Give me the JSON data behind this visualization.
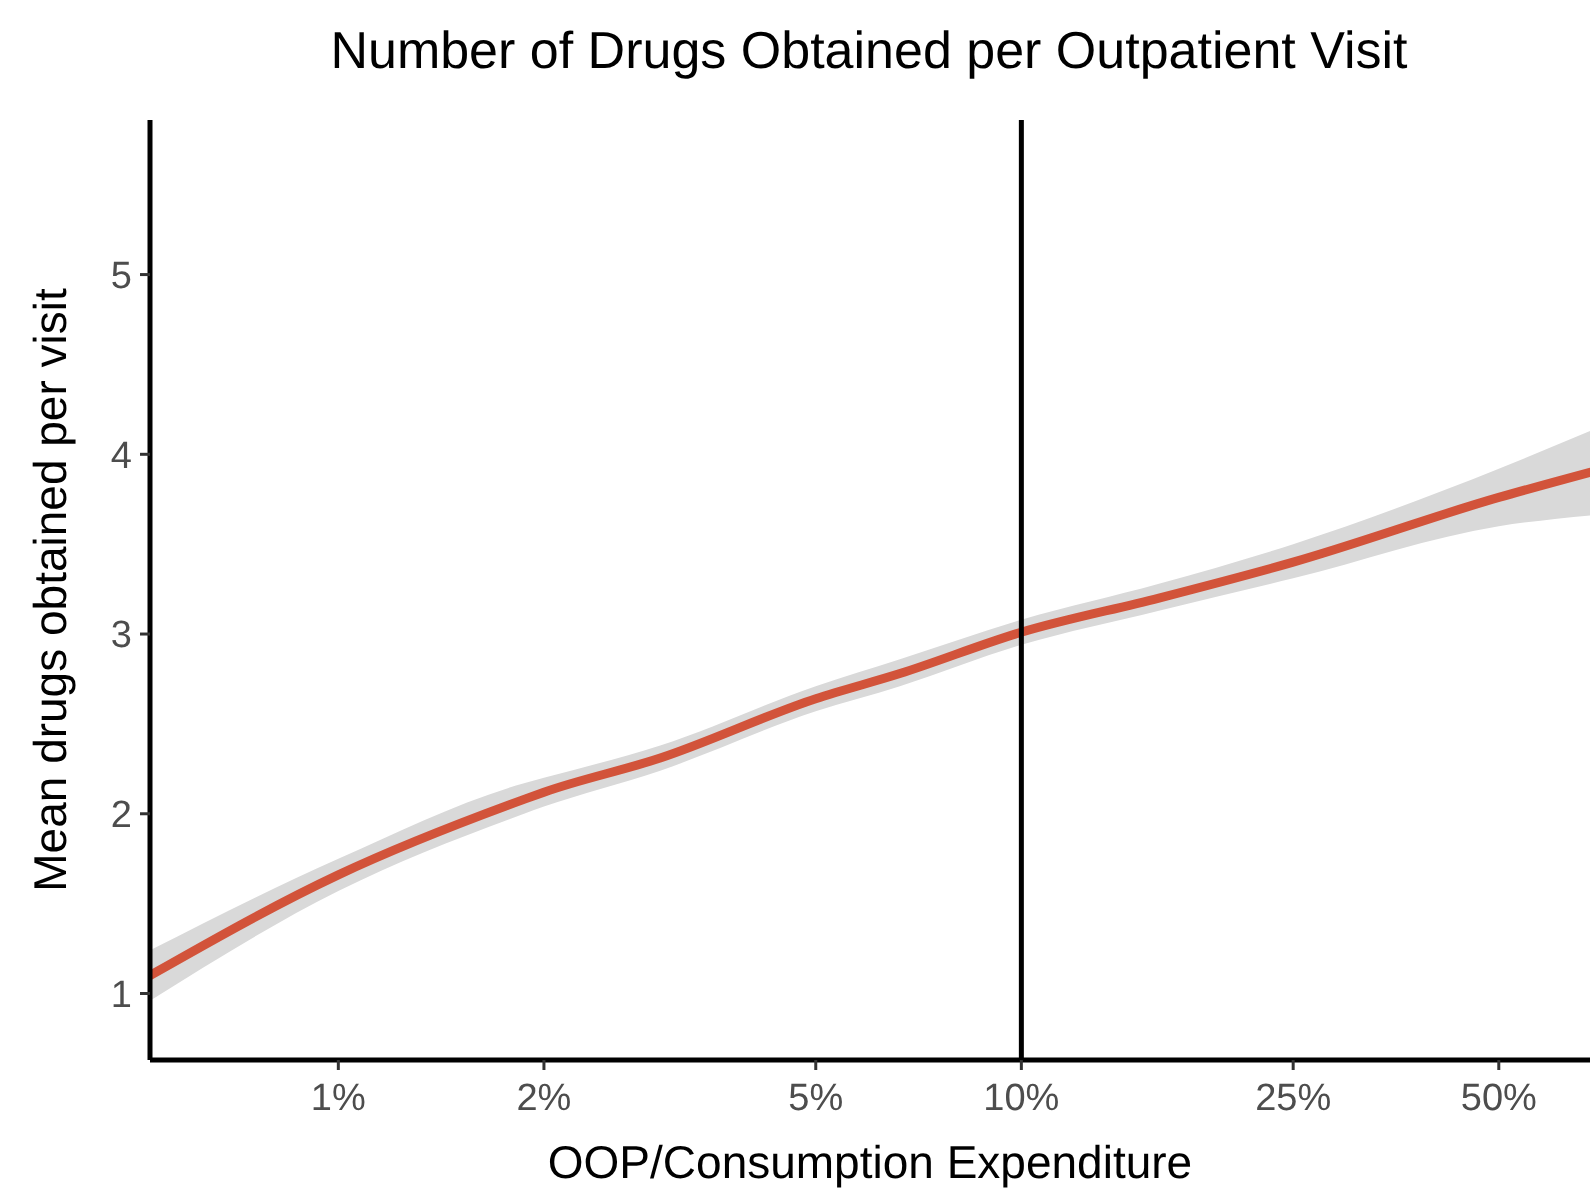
{
  "chart_data": {
    "type": "line",
    "title": "Number of Drugs Obtained per Outpatient Visit",
    "xlabel": "OOP/Consumption Expenditure",
    "ylabel": "Mean drugs obtained per visit",
    "log": "x",
    "grid": false,
    "xlim": [
      0.53,
      68
    ],
    "xticks": [
      {
        "value": 1,
        "label": "1%"
      },
      {
        "value": 2,
        "label": "2%"
      },
      {
        "value": 5,
        "label": "5%"
      },
      {
        "value": 10,
        "label": "10%"
      },
      {
        "value": 25,
        "label": "25%"
      },
      {
        "value": 50,
        "label": "50%"
      }
    ],
    "ylim": [
      0.63,
      5.86
    ],
    "yticks": [
      1,
      2,
      3,
      4,
      5
    ],
    "ref_lines": [
      {
        "axis": "x",
        "value": 10,
        "color": "#000000",
        "line_style": "solid"
      }
    ],
    "series": [
      {
        "color": "#d2533a",
        "x": [
          0.53,
          1,
          1.87,
          2,
          2.96,
          5,
          6.64,
          10,
          15.9,
          25,
          50,
          68
        ],
        "values": [
          1.1,
          1.66,
          2.08,
          2.12,
          2.31,
          2.64,
          2.78,
          3.01,
          3.2,
          3.4,
          3.76,
          3.9
        ],
        "lower": [
          0.96,
          1.57,
          2.0,
          2.04,
          2.24,
          2.57,
          2.71,
          2.94,
          3.13,
          3.31,
          3.6,
          3.66
        ],
        "upper": [
          1.24,
          1.75,
          2.17,
          2.2,
          2.38,
          2.71,
          2.86,
          3.08,
          3.28,
          3.5,
          3.92,
          4.13
        ]
      }
    ]
  }
}
